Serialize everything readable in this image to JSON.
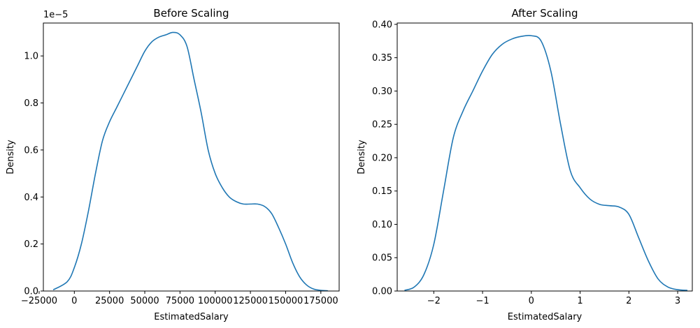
{
  "chart_data": [
    {
      "type": "line",
      "title": "Before Scaling",
      "xlabel": "EstimatedSalary",
      "ylabel": "Density",
      "y_offset_label": "1e−5",
      "xlim": [
        -22000,
        188000
      ],
      "ylim": [
        0,
        1.14
      ],
      "xticks": [
        -25000,
        0,
        25000,
        50000,
        75000,
        100000,
        125000,
        150000,
        175000
      ],
      "xtick_labels": [
        "−25000",
        "0",
        "25000",
        "50000",
        "75000",
        "100000",
        "125000",
        "150000",
        "175000"
      ],
      "yticks": [
        0,
        0.2,
        0.4,
        0.6,
        0.8,
        1.0
      ],
      "ytick_labels": [
        "0.0",
        "0.2",
        "0.4",
        "0.6",
        "0.8",
        "1.0"
      ],
      "color": "#1f77b4",
      "grid": false,
      "series": [
        {
          "x": [
            -15000,
            -5000,
            0,
            5000,
            10000,
            15000,
            20000,
            25000,
            30000,
            35000,
            40000,
            45000,
            50000,
            55000,
            60000,
            65000,
            70000,
            75000,
            80000,
            85000,
            90000,
            95000,
            100000,
            105000,
            110000,
            115000,
            120000,
            125000,
            130000,
            135000,
            140000,
            145000,
            150000,
            155000,
            160000,
            165000,
            170000,
            175000,
            180000
          ],
          "y": [
            0.005,
            0.04,
            0.1,
            0.2,
            0.34,
            0.5,
            0.64,
            0.72,
            0.78,
            0.84,
            0.9,
            0.96,
            1.02,
            1.06,
            1.08,
            1.09,
            1.1,
            1.09,
            1.04,
            0.9,
            0.76,
            0.6,
            0.5,
            0.44,
            0.4,
            0.38,
            0.37,
            0.37,
            0.37,
            0.36,
            0.33,
            0.27,
            0.2,
            0.12,
            0.06,
            0.025,
            0.008,
            0.003,
            0.001
          ]
        }
      ]
    },
    {
      "type": "line",
      "title": "After Scaling",
      "xlabel": "EstimatedSalary",
      "ylabel": "Density",
      "xlim": [
        -2.75,
        3.3
      ],
      "ylim": [
        0,
        0.402
      ],
      "xticks": [
        -2,
        -1,
        0,
        1,
        2,
        3
      ],
      "xtick_labels": [
        "−2",
        "−1",
        "0",
        "1",
        "2",
        "3"
      ],
      "yticks": [
        0,
        0.05,
        0.1,
        0.15,
        0.2,
        0.25,
        0.3,
        0.35,
        0.4
      ],
      "ytick_labels": [
        "0.00",
        "0.05",
        "0.10",
        "0.15",
        "0.20",
        "0.25",
        "0.30",
        "0.35",
        "0.40"
      ],
      "color": "#1f77b4",
      "grid": false,
      "series": [
        {
          "x": [
            -2.6,
            -2.4,
            -2.2,
            -2.0,
            -1.8,
            -1.6,
            -1.4,
            -1.2,
            -1.0,
            -0.8,
            -0.6,
            -0.4,
            -0.2,
            0.0,
            0.2,
            0.4,
            0.6,
            0.8,
            1.0,
            1.2,
            1.4,
            1.6,
            1.8,
            2.0,
            2.2,
            2.4,
            2.6,
            2.8,
            3.0,
            3.2
          ],
          "y": [
            0.001,
            0.006,
            0.025,
            0.07,
            0.15,
            0.23,
            0.27,
            0.3,
            0.33,
            0.355,
            0.37,
            0.378,
            0.382,
            0.383,
            0.375,
            0.33,
            0.25,
            0.18,
            0.155,
            0.138,
            0.13,
            0.128,
            0.126,
            0.115,
            0.08,
            0.045,
            0.018,
            0.006,
            0.002,
            0.001
          ]
        }
      ]
    }
  ]
}
